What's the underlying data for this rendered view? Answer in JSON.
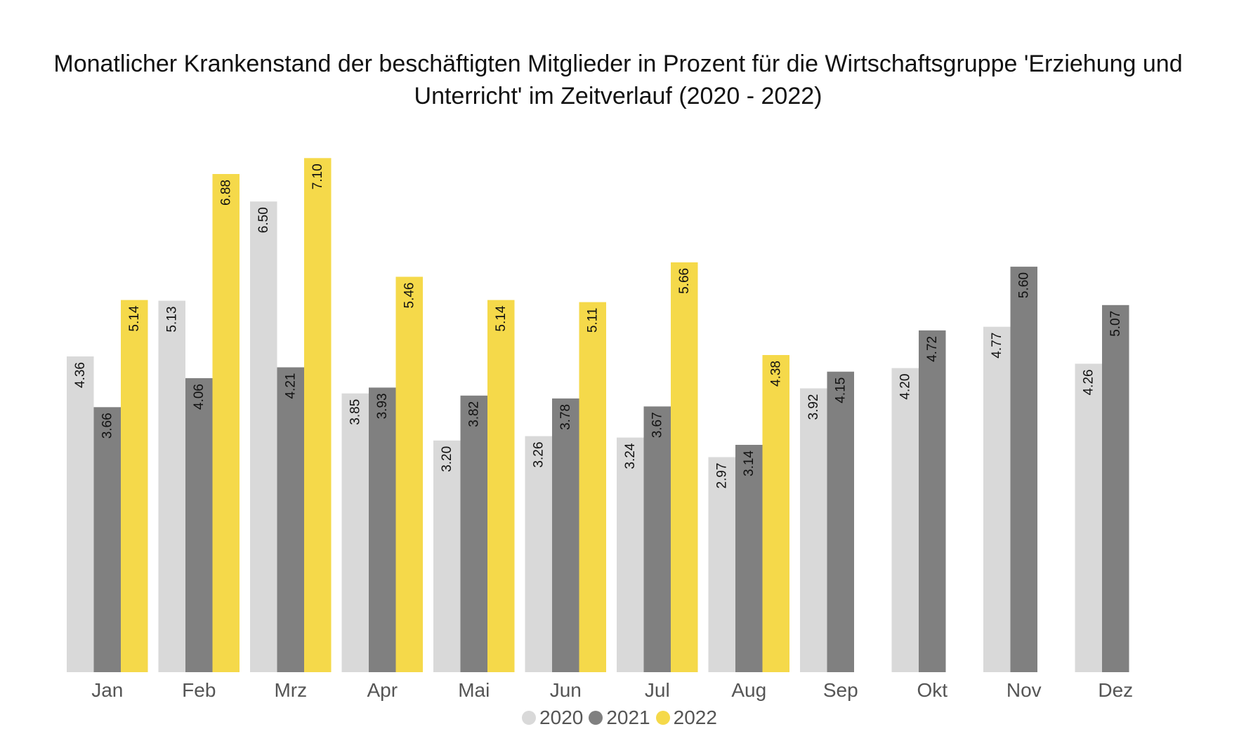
{
  "chart_data": {
    "type": "bar",
    "title": "Monatlicher Krankenstand der beschäftigten Mitglieder in Prozent für die Wirtschaftsgruppe 'Erziehung und Unterricht' im Zeitverlauf (2020 - 2022)",
    "categories": [
      "Jan",
      "Feb",
      "Mrz",
      "Apr",
      "Mai",
      "Jun",
      "Jul",
      "Aug",
      "Sep",
      "Okt",
      "Nov",
      "Dez"
    ],
    "series": [
      {
        "name": "2020",
        "color": "#d9d9d9",
        "values": [
          4.36,
          5.13,
          6.5,
          3.85,
          3.2,
          3.26,
          3.24,
          2.97,
          3.92,
          4.2,
          4.77,
          4.26
        ]
      },
      {
        "name": "2021",
        "color": "#808080",
        "values": [
          3.66,
          4.06,
          4.21,
          3.93,
          3.82,
          3.78,
          3.67,
          3.14,
          4.15,
          4.72,
          5.6,
          5.07
        ]
      },
      {
        "name": "2022",
        "color": "#f5d94a",
        "values": [
          5.14,
          6.88,
          7.1,
          5.46,
          5.14,
          5.11,
          5.66,
          4.38,
          null,
          null,
          null,
          null
        ]
      }
    ],
    "data_labels": true,
    "grid": false,
    "legend_position": "bottom",
    "xlabel": "",
    "ylabel": ""
  }
}
